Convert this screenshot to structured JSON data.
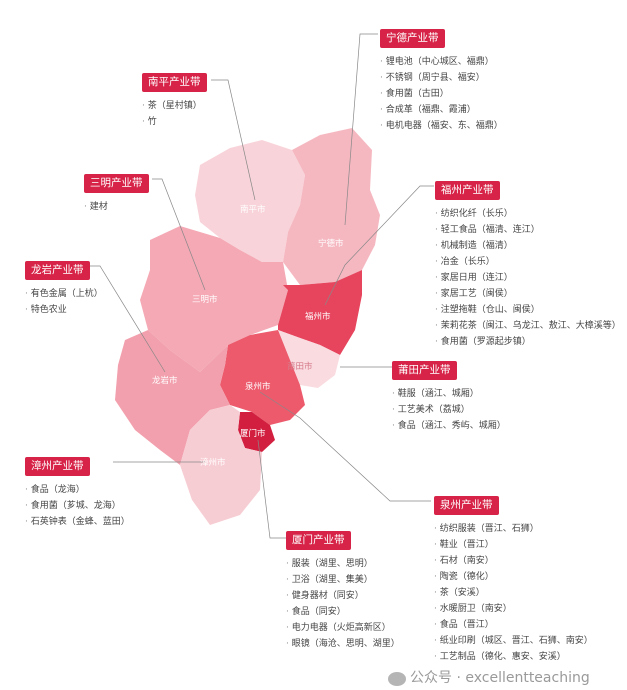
{
  "cities": {
    "nanping": "南平市",
    "ningde": "宁德市",
    "fuzhou": "福州市",
    "putian": "莆田市",
    "quanzhou": "泉州市",
    "xiamen": "厦门市",
    "zhangzhou": "漳州市",
    "longyan": "龙岩市",
    "sanming": "三明市"
  },
  "belts": {
    "ningde": {
      "title": "宁德产业带",
      "items": [
        "锂电池（中心城区、福鼎）",
        "不锈钢（周宁县、福安）",
        "食用菌（古田）",
        "合成革（福鼎、霞浦）",
        "电机电器（福安、东、福鼎）"
      ]
    },
    "nanping": {
      "title": "南平产业带",
      "items": [
        "茶（星村镇）",
        "竹"
      ]
    },
    "sanming": {
      "title": "三明产业带",
      "items": [
        "建材"
      ]
    },
    "fuzhou": {
      "title": "福州产业带",
      "items": [
        "纺织化纤（长乐）",
        "轻工食品（福清、连江）",
        "机械制造（福清）",
        "冶金（长乐）",
        "家居日用（连江）",
        "家居工艺（闽侯）",
        "注塑拖鞋（仓山、闽侯）",
        "茉莉花茶（闽江、乌龙江、敖江、大樟溪等）",
        "食用菌（罗源起步镇）"
      ]
    },
    "longyan": {
      "title": "龙岩产业带",
      "items": [
        "有色金属（上杭）",
        "特色农业"
      ]
    },
    "putian": {
      "title": "莆田产业带",
      "items": [
        "鞋服（涵江、城厢）",
        "工艺美术（荔城）",
        "食品（涵江、秀屿、城厢）"
      ]
    },
    "zhangzhou": {
      "title": "漳州产业带",
      "items": [
        "食品（龙海）",
        "食用菌（芗城、龙海）",
        "石英钟表（金蜂、蓝田）"
      ]
    },
    "quanzhou": {
      "title": "泉州产业带",
      "items": [
        "纺织服装（晋江、石狮）",
        "鞋业（晋江）",
        "石材（南安）",
        "陶瓷（德化）",
        "茶（安溪）",
        "水暖厨卫（南安）",
        "食品（晋江）",
        "纸业印刷（城区、晋江、石狮、南安）",
        "工艺制品（德化、惠安、安溪）"
      ]
    },
    "xiamen": {
      "title": "厦门产业带",
      "items": [
        "服装（湖里、思明）",
        "卫浴（湖里、集美）",
        "健身器材（同安）",
        "食品（同安）",
        "电力电器（火炬高新区）",
        "眼镜（海沧、思明、湖里）"
      ]
    }
  },
  "watermark": "公众号 · excellentteaching",
  "colors": {
    "accent": "#d62347",
    "nanping": "#f8d4da",
    "ningde": "#f5b8c1",
    "fuzhou": "#e6455d",
    "putian": "#f9dbe0",
    "quanzhou": "#ec5a6c",
    "xiamen": "#d21f3f",
    "zhangzhou": "#f7cdd4",
    "longyan": "#f2a0ad",
    "sanming": "#f4a9b5"
  }
}
